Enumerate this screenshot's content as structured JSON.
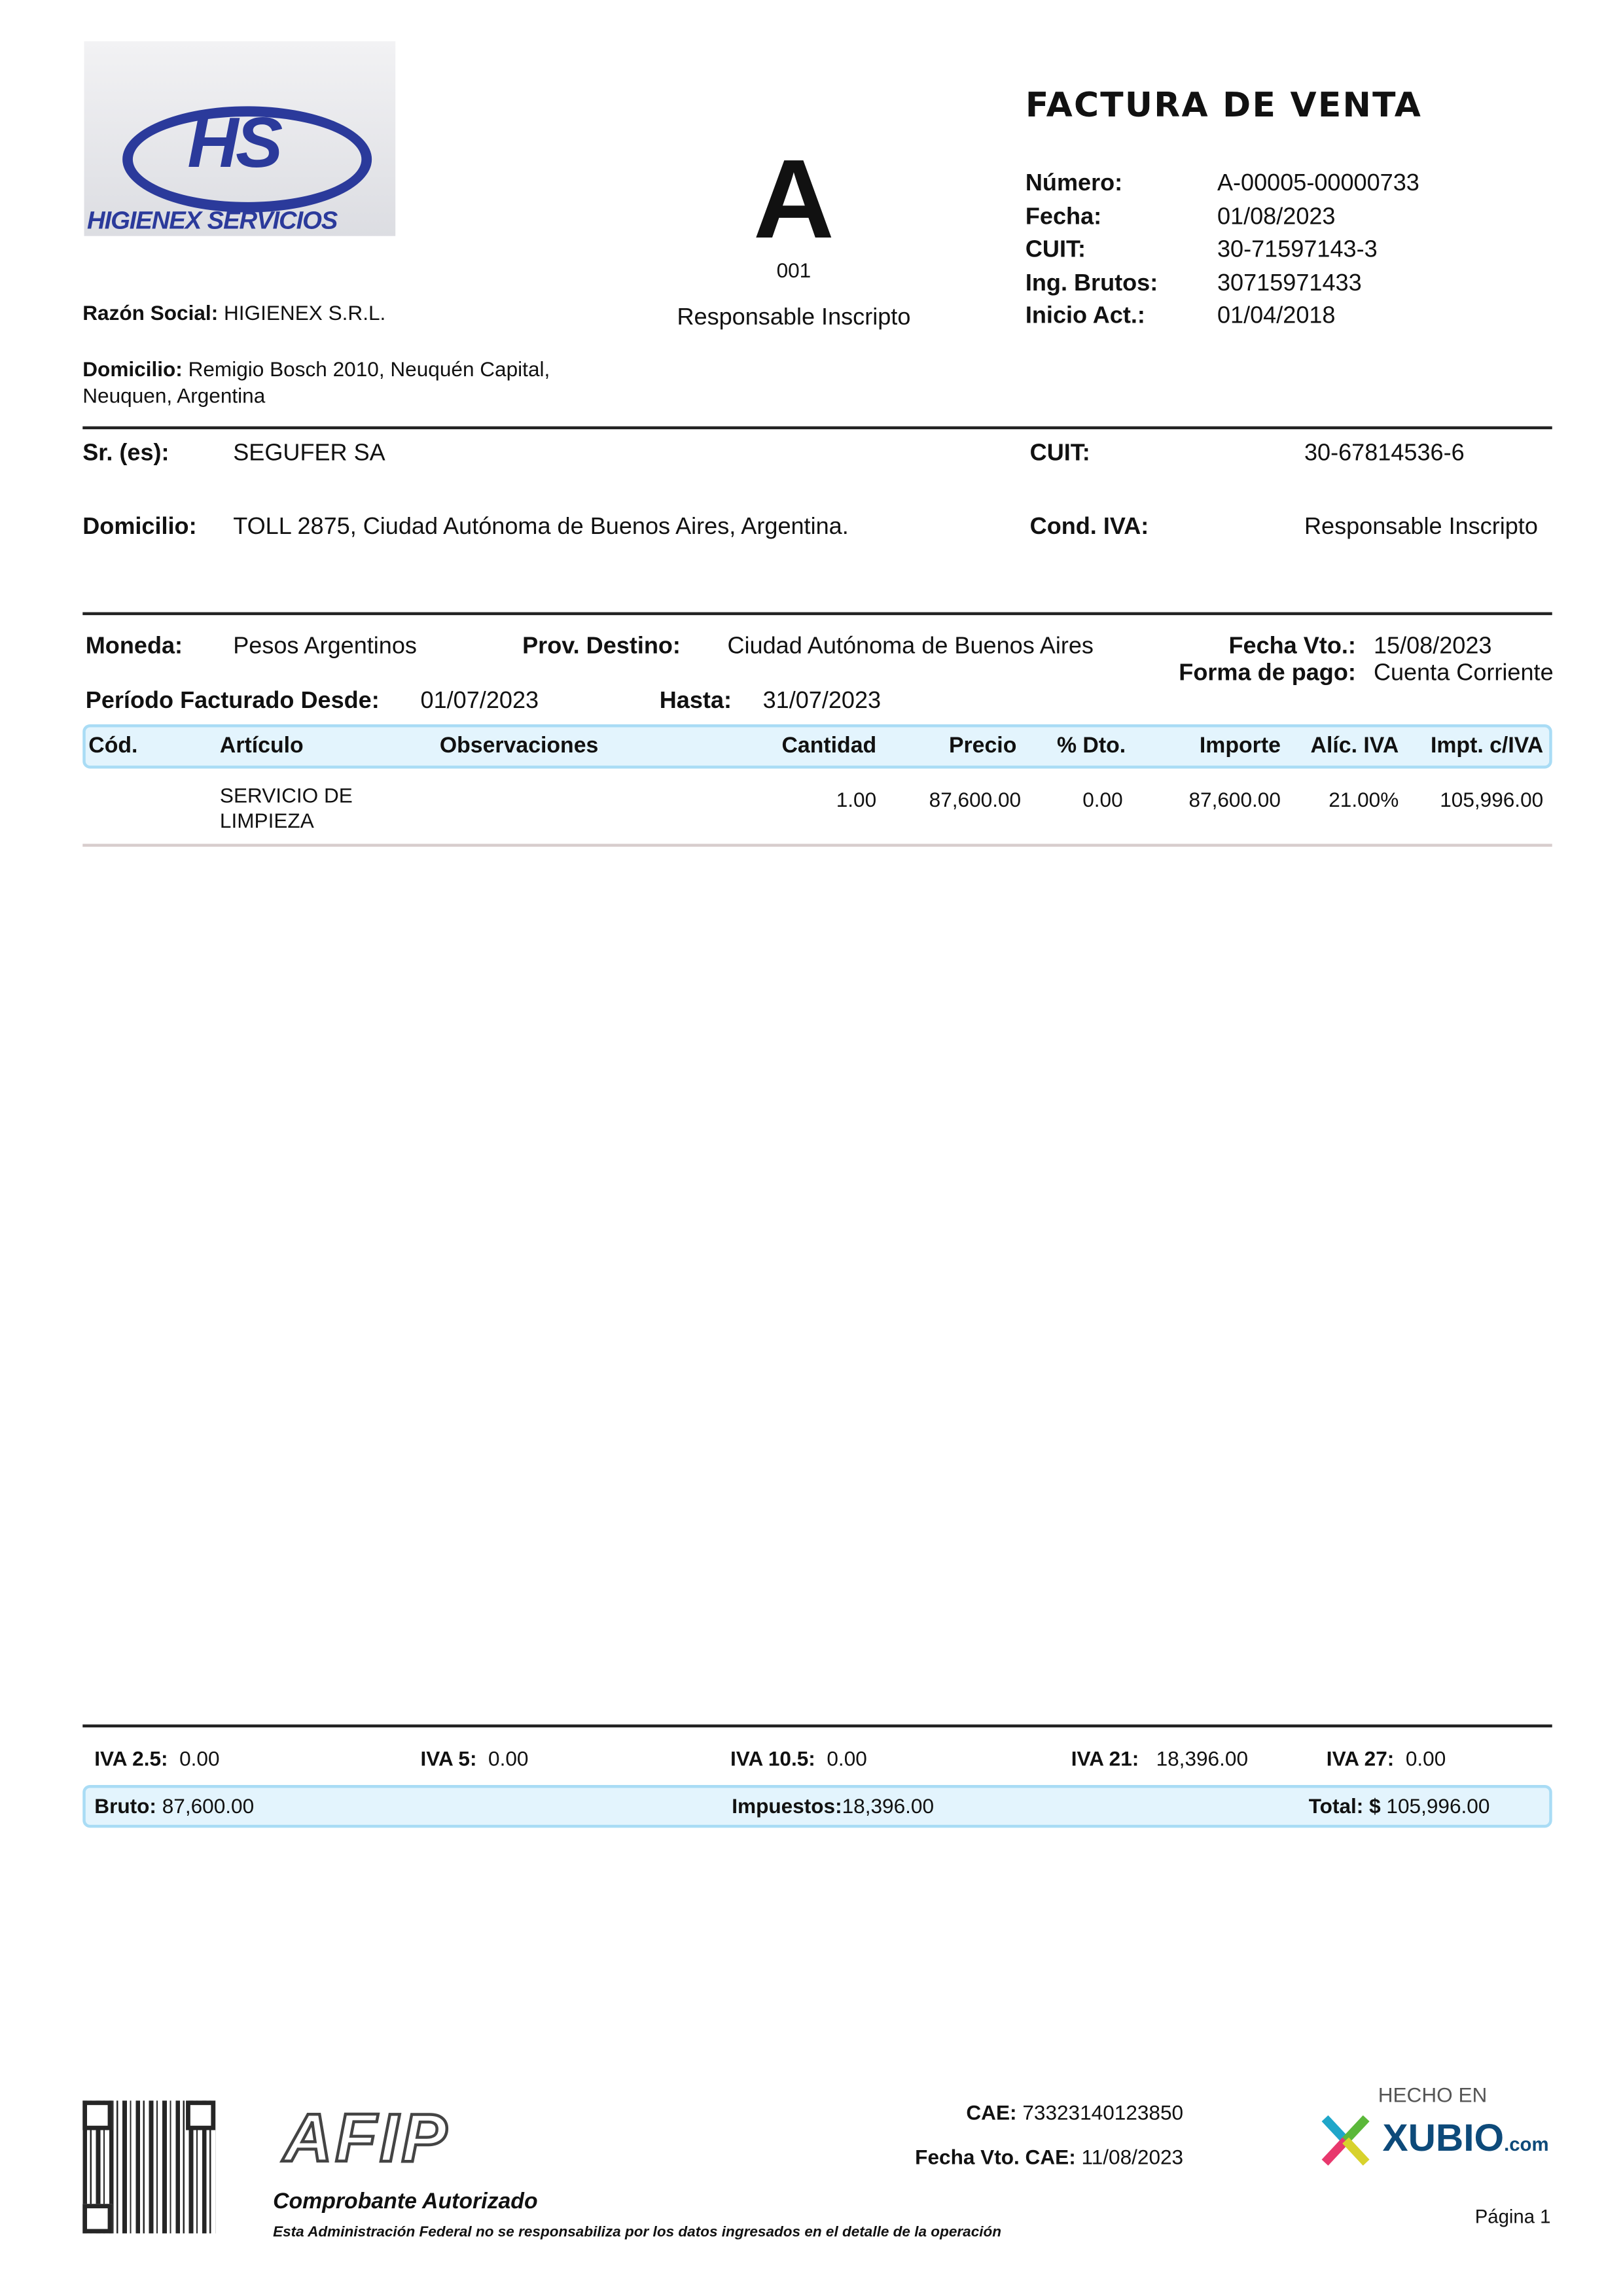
{
  "issuer": {
    "logo_text": "HS",
    "logo_caption": "HIGIENEX SERVICIOS",
    "razon_social_label": "Razón Social:",
    "razon_social": "HIGIENEX S.R.L.",
    "domicilio_label": "Domicilio:",
    "domicilio_line1": "Remigio Bosch 2010, Neuquén Capital,",
    "domicilio_line2": "Neuquen, Argentina"
  },
  "invoice_type": {
    "letter": "A",
    "code": "001",
    "condition": "Responsable Inscripto"
  },
  "header": {
    "title": "FACTURA DE VENTA",
    "fields": [
      {
        "label": "Número:",
        "value": "A-00005-00000733"
      },
      {
        "label": "Fecha:",
        "value": "01/08/2023"
      },
      {
        "label": "CUIT:",
        "value": "30-71597143-3"
      },
      {
        "label": "Ing. Brutos:",
        "value": "30715971433"
      },
      {
        "label": "Inicio Act.:",
        "value": "01/04/2018"
      }
    ]
  },
  "client": {
    "name_label": "Sr. (es):",
    "name": "SEGUFER SA",
    "cuit_label": "CUIT:",
    "cuit": "30-67814536-6",
    "domicilio_label": "Domicilio:",
    "domicilio": "TOLL 2875, Ciudad Autónoma de Buenos Aires, Argentina.",
    "cond_iva_label": "Cond. IVA:",
    "cond_iva": "Responsable Inscripto"
  },
  "terms": {
    "moneda_label": "Moneda:",
    "moneda": "Pesos Argentinos",
    "prov_label": "Prov. Destino:",
    "prov": "Ciudad Autónoma de Buenos Aires",
    "vto_label": "Fecha Vto.:",
    "vto": "15/08/2023",
    "pago_label": "Forma de pago:",
    "pago": "Cuenta Corriente",
    "desde_label": "Período Facturado Desde:",
    "desde": "01/07/2023",
    "hasta_label": "Hasta:",
    "hasta": "31/07/2023"
  },
  "table": {
    "columns": [
      "Cód.",
      "Artículo",
      "Observaciones",
      "Cantidad",
      "Precio",
      "% Dto.",
      "Importe",
      "Alíc. IVA",
      "Impt. c/IVA"
    ],
    "rows": [
      {
        "cod": "",
        "articulo_1": "SERVICIO DE",
        "articulo_2": "LIMPIEZA",
        "obs": "",
        "cantidad": "1.00",
        "precio": "87,600.00",
        "dto": "0.00",
        "importe": "87,600.00",
        "alic": "21.00%",
        "total": "105,996.00"
      }
    ]
  },
  "taxes": [
    {
      "label": "IVA 2.5:",
      "value": "0.00"
    },
    {
      "label": "IVA 5:",
      "value": "0.00"
    },
    {
      "label": "IVA 10.5:",
      "value": "0.00"
    },
    {
      "label": "IVA 21:",
      "value": "18,396.00"
    },
    {
      "label": "IVA 27:",
      "value": "0.00"
    }
  ],
  "totals": {
    "bruto_label": "Bruto:",
    "bruto": "87,600.00",
    "impuestos_label": "Impuestos:",
    "impuestos": "18,396.00",
    "total_label": "Total: $",
    "total": "105,996.00"
  },
  "footer": {
    "afip_logo": "AFIP",
    "autorizado": "Comprobante Autorizado",
    "disclaimer": "Esta Administración Federal no se responsabiliza por los datos ingresados en el detalle de la operación",
    "cae_label": "CAE:",
    "cae": "73323140123850",
    "cae_vto_label": "Fecha Vto. CAE:",
    "cae_vto": "11/08/2023",
    "hecho_en": "HECHO EN",
    "xubio": "XUBIO",
    "xubio_com": ".com",
    "page": "Página 1"
  },
  "colors": {
    "box_fill": "#e3f4fd",
    "box_border": "#a9dcf5",
    "logo_blue": "#2b3a9b"
  }
}
